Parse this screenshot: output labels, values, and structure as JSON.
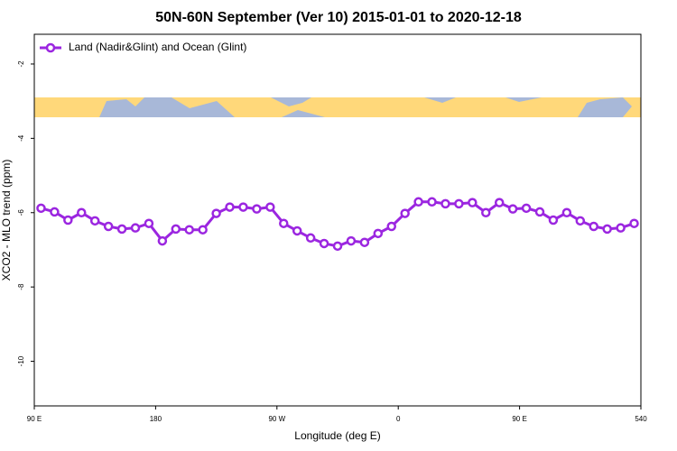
{
  "chart_data": {
    "type": "line",
    "title": "50N-60N September (Ver 10)   2015-01-01 to 2020-12-18",
    "x_label": "Longitude (deg E)",
    "y_label": "XCO2 - MLO trend (ppm)",
    "x": [
      95,
      105,
      115,
      125,
      135,
      145,
      155,
      165,
      175,
      185,
      195,
      205,
      215,
      225,
      235,
      245,
      255,
      265,
      275,
      285,
      295,
      305,
      315,
      325,
      335,
      345,
      355,
      365,
      375,
      385,
      395,
      405,
      415,
      425,
      435,
      445,
      455,
      465,
      475,
      485,
      495,
      505,
      515,
      525,
      535
    ],
    "series": [
      {
        "name": "Land (Nadir&Glint) and Ocean (Glint)",
        "color": "#9b26e0",
        "values": [
          -5.88,
          -5.98,
          -6.2,
          -6.0,
          -6.22,
          -6.37,
          -6.44,
          -6.41,
          -6.29,
          -6.76,
          -6.44,
          -6.46,
          -6.46,
          -6.02,
          -5.85,
          -5.85,
          -5.9,
          -5.85,
          -6.29,
          -6.49,
          -6.68,
          -6.83,
          -6.9,
          -6.76,
          -6.8,
          -6.56,
          -6.37,
          -6.02,
          -5.71,
          -5.71,
          -5.76,
          -5.76,
          -5.73,
          -6.0,
          -5.73,
          -5.9,
          -5.88,
          -5.98,
          -6.2,
          -6.0,
          -6.22,
          -6.37,
          -6.44,
          -6.41,
          -6.29
        ]
      }
    ],
    "xlim": [
      90,
      540
    ],
    "xticks": [
      {
        "value": 90,
        "label": "90 E"
      },
      180,
      {
        "value": 270,
        "label": "90 W"
      },
      {
        "value": 360,
        "label": "0"
      },
      {
        "value": 450,
        "label": "90 E"
      },
      540
    ],
    "ylim": [
      -11.2,
      -1.2
    ],
    "yticks": [
      -10,
      -8,
      -6,
      -4,
      -2
    ],
    "legend": "top-left"
  }
}
